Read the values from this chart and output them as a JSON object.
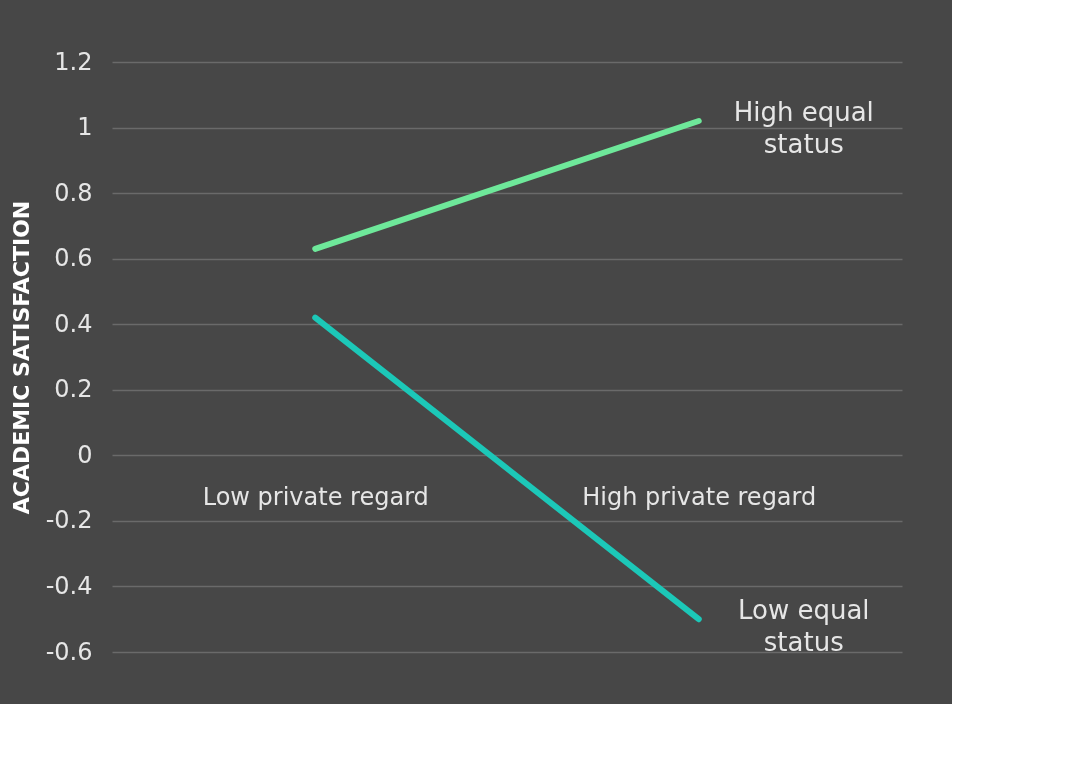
{
  "chart_data": {
    "type": "line",
    "ylabel": "ACADEMIC SATISFACTION",
    "categories": [
      "Low private regard",
      "High private regard"
    ],
    "series": [
      {
        "name": "High equal status",
        "color": "#6ee89a",
        "values": [
          0.63,
          1.02
        ]
      },
      {
        "name": "Low equal status",
        "color": "#1cc8b8",
        "values": [
          0.42,
          -0.5
        ]
      }
    ],
    "ylim": [
      -0.6,
      1.2
    ],
    "yticks": [
      -0.6,
      -0.4,
      -0.2,
      0,
      0.2,
      0.4,
      0.6,
      0.8,
      1,
      1.2
    ],
    "grid": "y",
    "legend": false,
    "marker": "none",
    "line_style": "solid"
  }
}
